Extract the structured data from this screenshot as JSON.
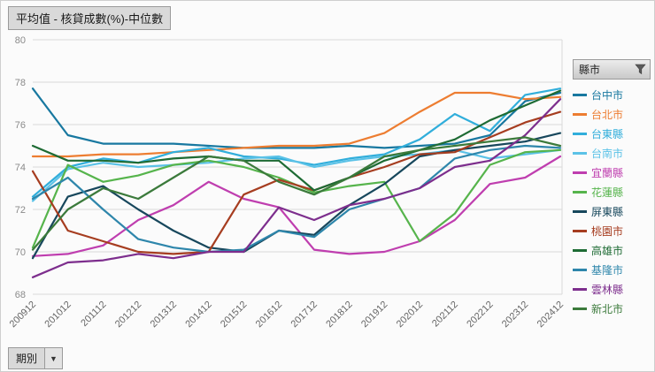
{
  "title": "平均值 - 核貸成數(%)-中位數",
  "legend": {
    "header": "縣市"
  },
  "period_button": {
    "label": "期別"
  },
  "chart_data": {
    "type": "line",
    "title": "平均值 - 核貸成數(%)-中位數",
    "xlabel": "期別",
    "ylabel": "核貸成數(%)-中位數",
    "ylim": [
      68,
      80
    ],
    "yticks": [
      68,
      70,
      72,
      74,
      76,
      78,
      80
    ],
    "grid": true,
    "legend_position": "right",
    "x": [
      "200912",
      "201012",
      "201112",
      "201212",
      "201312",
      "201412",
      "201512",
      "201612",
      "201712",
      "201812",
      "201912",
      "202012",
      "202112",
      "202212",
      "202312",
      "202412"
    ],
    "series": [
      {
        "name": "台中市",
        "color": "#1878A0",
        "values": [
          77.7,
          75.5,
          75.1,
          75.1,
          75.1,
          75.0,
          74.9,
          74.9,
          74.9,
          75.0,
          74.9,
          75.0,
          75.1,
          75.5,
          77.1,
          77.5
        ]
      },
      {
        "name": "台北市",
        "color": "#ED7D31",
        "values": [
          74.5,
          74.5,
          74.6,
          74.6,
          74.7,
          74.8,
          74.9,
          75.0,
          75.0,
          75.1,
          75.6,
          76.6,
          77.5,
          77.5,
          77.2,
          77.3
        ]
      },
      {
        "name": "台東縣",
        "color": "#31AEDB",
        "values": [
          72.6,
          74.0,
          74.4,
          74.2,
          74.7,
          74.9,
          74.5,
          74.4,
          74.1,
          74.4,
          74.6,
          75.3,
          76.5,
          75.7,
          77.4,
          77.7
        ]
      },
      {
        "name": "台南市",
        "color": "#5BC2E7",
        "values": [
          72.4,
          73.9,
          74.2,
          74.0,
          74.1,
          74.2,
          74.4,
          74.5,
          74.0,
          74.3,
          74.5,
          74.6,
          74.8,
          74.4,
          74.6,
          74.8
        ]
      },
      {
        "name": "宜蘭縣",
        "color": "#BF3EAF",
        "values": [
          69.8,
          69.9,
          70.3,
          71.5,
          72.2,
          73.3,
          72.5,
          72.1,
          70.1,
          69.9,
          70.0,
          70.5,
          71.5,
          73.2,
          73.5,
          74.5
        ]
      },
      {
        "name": "花蓮縣",
        "color": "#56B44C",
        "values": [
          70.2,
          74.1,
          73.3,
          73.6,
          74.1,
          74.3,
          74.0,
          73.5,
          72.8,
          73.1,
          73.3,
          70.5,
          71.8,
          74.1,
          74.7,
          74.8
        ]
      },
      {
        "name": "屏東縣",
        "color": "#17475C",
        "values": [
          69.7,
          72.6,
          73.1,
          72.0,
          71.0,
          70.2,
          70.0,
          71.0,
          70.8,
          72.2,
          73.2,
          74.5,
          74.8,
          75.0,
          75.2,
          75.6
        ]
      },
      {
        "name": "桃園市",
        "color": "#A63D20",
        "values": [
          73.8,
          71.0,
          70.5,
          70.0,
          69.9,
          70.0,
          72.7,
          73.4,
          72.9,
          73.5,
          74.0,
          74.6,
          74.7,
          75.4,
          76.1,
          76.6
        ]
      },
      {
        "name": "高雄市",
        "color": "#1E6B34",
        "values": [
          75.0,
          74.3,
          74.3,
          74.2,
          74.4,
          74.5,
          74.3,
          74.3,
          72.9,
          73.5,
          74.3,
          74.8,
          75.3,
          76.2,
          76.9,
          77.6
        ]
      },
      {
        "name": "基隆市",
        "color": "#2E86AB",
        "values": [
          72.5,
          73.5,
          72.0,
          70.6,
          70.2,
          70.0,
          70.1,
          71.0,
          70.7,
          72.0,
          72.5,
          73.0,
          74.4,
          74.8,
          75.0,
          74.9
        ]
      },
      {
        "name": "雲林縣",
        "color": "#7D2E8D",
        "values": [
          68.8,
          69.5,
          69.6,
          69.9,
          69.7,
          70.0,
          70.0,
          72.1,
          71.5,
          72.2,
          72.5,
          73.0,
          74.0,
          74.3,
          75.5,
          77.2
        ]
      },
      {
        "name": "新北市",
        "color": "#3B7A3B",
        "values": [
          70.1,
          72.0,
          73.0,
          72.5,
          73.5,
          74.5,
          74.3,
          73.3,
          72.7,
          73.5,
          74.5,
          74.8,
          75.0,
          75.2,
          75.4,
          75.0
        ]
      }
    ]
  }
}
